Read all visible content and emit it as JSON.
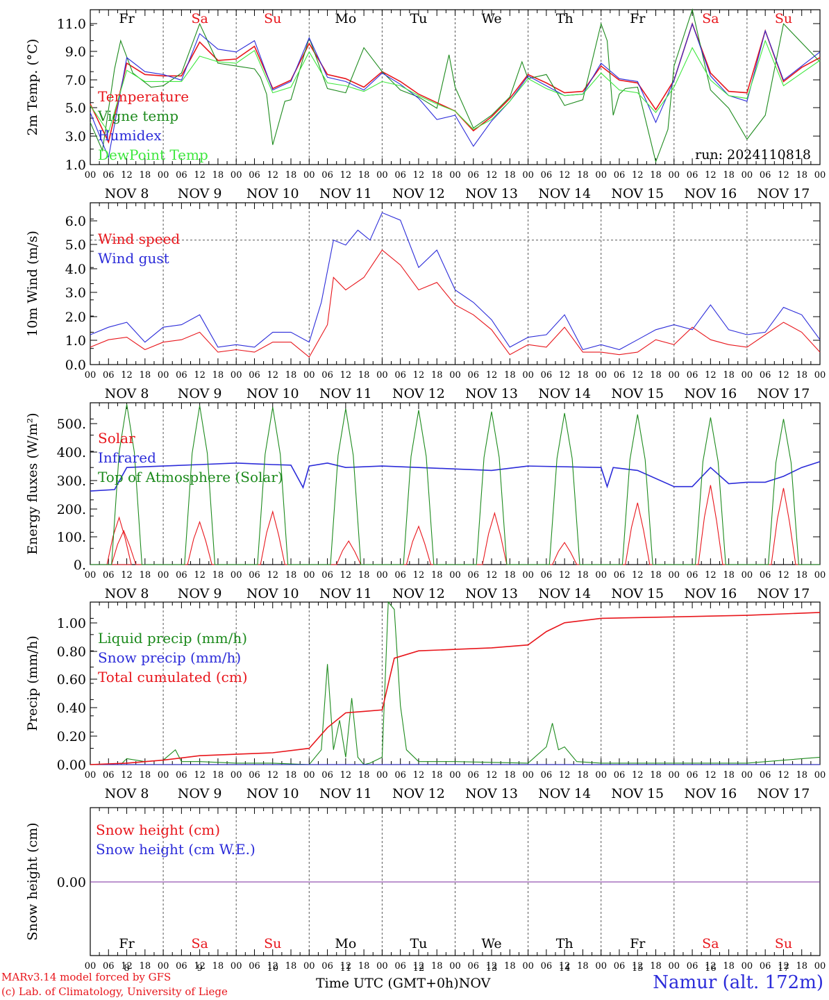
{
  "days": [
    {
      "date_label": "NOV  8",
      "weekday": "Fr",
      "weekend": false,
      "day_num": "8"
    },
    {
      "date_label": "NOV  9",
      "weekday": "Sa",
      "weekend": true,
      "day_num": "9"
    },
    {
      "date_label": "NOV 10",
      "weekday": "Su",
      "weekend": true,
      "day_num": "10"
    },
    {
      "date_label": "NOV 11",
      "weekday": "Mo",
      "weekend": false,
      "day_num": "11"
    },
    {
      "date_label": "NOV 12",
      "weekday": "Tu",
      "weekend": false,
      "day_num": "12"
    },
    {
      "date_label": "NOV 13",
      "weekday": "We",
      "weekend": false,
      "day_num": "13"
    },
    {
      "date_label": "NOV 14",
      "weekday": "Th",
      "weekend": false,
      "day_num": "14"
    },
    {
      "date_label": "NOV 15",
      "weekday": "Fr",
      "weekend": false,
      "day_num": "15"
    },
    {
      "date_label": "NOV 16",
      "weekday": "Sa",
      "weekend": true,
      "day_num": "16"
    },
    {
      "date_label": "NOV 17",
      "weekday": "Su",
      "weekend": true,
      "day_num": "17"
    }
  ],
  "hour_ticks": [
    "00",
    "06",
    "12",
    "18"
  ],
  "colors": {
    "red": "#e8151b",
    "green": "#1c8a1c",
    "blue": "#2b2bd9",
    "light_green": "#3ee83e",
    "purple": "#7a2a9c",
    "weekend": "#e8151b"
  },
  "footer": {
    "model": "MARv3.14 model forced by GFS",
    "credit": "(c) Lab. of Climatology, University of Liege",
    "axis_label": "Time UTC (GMT+0h)",
    "month": "NOV",
    "site": "Namur (alt. 172m)"
  },
  "chart_data": [
    {
      "type": "line",
      "ylabel": "2m Temp. (°C)",
      "ylim": [
        1,
        12
      ],
      "yticks": [
        "1.0",
        "3.0",
        "5.0",
        "7.0",
        "9.0",
        "11.0"
      ],
      "annotation": "run: 2024110818",
      "x_unit": "hours since NOV 8 00 UTC",
      "series": [
        {
          "name": "Temperature",
          "color": "red",
          "x": [
            0,
            6,
            12,
            18,
            24,
            30,
            36,
            42,
            48,
            54,
            60,
            66,
            72,
            78,
            84,
            90,
            96,
            102,
            108,
            114,
            120,
            126,
            132,
            138,
            144,
            150,
            156,
            162,
            168,
            174,
            180,
            186,
            192,
            198,
            204,
            210,
            216,
            222,
            228,
            234,
            240
          ],
          "values": [
            5.3,
            2.6,
            8.2,
            7.4,
            7.3,
            7.3,
            9.7,
            8.4,
            8.5,
            9.4,
            6.4,
            7.0,
            9.6,
            7.4,
            7.1,
            6.5,
            7.6,
            6.9,
            6.0,
            5.4,
            4.8,
            3.4,
            4.4,
            5.7,
            7.4,
            6.8,
            6.1,
            6.2,
            8.0,
            7.0,
            6.8,
            4.9,
            7.0,
            11.0,
            7.5,
            6.2,
            6.1,
            10.5,
            6.9,
            7.9,
            8.6
          ]
        },
        {
          "name": "Vigne temp",
          "color": "green",
          "x": [
            0,
            4,
            8,
            10,
            14,
            20,
            24,
            30,
            36,
            42,
            48,
            54,
            56,
            58,
            60,
            64,
            66,
            72,
            78,
            84,
            90,
            96,
            102,
            108,
            114,
            118,
            120,
            126,
            132,
            138,
            142,
            144,
            150,
            156,
            162,
            168,
            170,
            172,
            174,
            176,
            180,
            186,
            190,
            192,
            198,
            204,
            210,
            216,
            222,
            228,
            240
          ],
          "values": [
            4.0,
            2.0,
            7.8,
            9.8,
            7.5,
            6.5,
            6.6,
            7.5,
            11.0,
            8.2,
            8.0,
            7.8,
            7.2,
            6.0,
            2.4,
            5.5,
            5.6,
            10.0,
            6.4,
            6.1,
            9.3,
            7.6,
            6.3,
            5.8,
            5.0,
            8.8,
            6.5,
            3.6,
            4.5,
            5.8,
            8.3,
            7.1,
            7.4,
            5.2,
            5.6,
            11.0,
            9.8,
            4.5,
            6.0,
            6.4,
            6.5,
            1.2,
            3.5,
            8.0,
            12.0,
            6.3,
            5.0,
            2.8,
            4.5,
            11.0,
            8.3
          ]
        },
        {
          "name": "Humidex",
          "color": "blue",
          "x": [
            0,
            6,
            12,
            18,
            24,
            30,
            36,
            42,
            48,
            54,
            60,
            66,
            72,
            78,
            84,
            90,
            96,
            102,
            108,
            114,
            120,
            126,
            132,
            138,
            144,
            150,
            156,
            162,
            168,
            174,
            180,
            186,
            192,
            198,
            204,
            210,
            216,
            222,
            228,
            234,
            240
          ],
          "values": [
            4.7,
            1.5,
            8.6,
            7.6,
            7.4,
            7.0,
            10.3,
            9.2,
            9.0,
            9.8,
            6.3,
            6.9,
            10.0,
            7.2,
            6.9,
            6.3,
            7.5,
            6.7,
            5.7,
            4.2,
            4.5,
            2.3,
            4.1,
            5.5,
            7.3,
            6.6,
            5.9,
            6.0,
            8.2,
            7.1,
            6.9,
            4.0,
            7.0,
            11.0,
            7.3,
            5.9,
            5.5,
            10.5,
            7.0,
            8.0,
            9.0
          ]
        },
        {
          "name": "DewPoint Temp",
          "color": "light_green",
          "x": [
            0,
            6,
            12,
            18,
            24,
            30,
            36,
            42,
            48,
            54,
            60,
            66,
            72,
            78,
            84,
            90,
            96,
            102,
            108,
            114,
            120,
            126,
            132,
            138,
            144,
            150,
            156,
            162,
            168,
            174,
            180,
            186,
            192,
            198,
            204,
            210,
            216,
            222,
            228,
            234,
            240
          ],
          "values": [
            5.2,
            3.3,
            7.7,
            6.9,
            6.9,
            6.9,
            8.7,
            8.3,
            8.2,
            9.1,
            6.1,
            6.5,
            9.0,
            6.8,
            6.6,
            6.2,
            6.9,
            6.6,
            5.9,
            5.3,
            4.8,
            3.5,
            4.2,
            5.5,
            7.1,
            6.4,
            5.9,
            6.0,
            7.5,
            6.3,
            6.1,
            4.7,
            6.5,
            9.3,
            7.0,
            5.9,
            5.7,
            9.8,
            6.6,
            7.5,
            8.4
          ]
        }
      ]
    },
    {
      "type": "line",
      "ylabel": "10m Wind (m/s)",
      "ylim": [
        0,
        6.5
      ],
      "yticks": [
        "0.0",
        "1.0",
        "2.0",
        "3.0",
        "4.0",
        "5.0",
        "6.0"
      ],
      "ref_line": 5.0,
      "x_unit": "hours since NOV 8 00 UTC",
      "series": [
        {
          "name": "Wind speed",
          "color": "red",
          "x": [
            0,
            6,
            12,
            18,
            24,
            30,
            36,
            42,
            48,
            54,
            60,
            66,
            72,
            78,
            80,
            84,
            90,
            96,
            102,
            108,
            114,
            120,
            126,
            132,
            138,
            144,
            150,
            156,
            162,
            168,
            174,
            180,
            186,
            192,
            198,
            204,
            210,
            216,
            222,
            228,
            234,
            240
          ],
          "values": [
            0.7,
            1.0,
            1.1,
            0.6,
            0.9,
            1.0,
            1.3,
            0.5,
            0.6,
            0.5,
            0.9,
            0.9,
            0.3,
            1.6,
            3.5,
            3.0,
            3.5,
            4.6,
            4.0,
            3.0,
            3.3,
            2.4,
            2.0,
            1.4,
            0.4,
            0.8,
            0.7,
            1.5,
            0.5,
            0.5,
            0.4,
            0.5,
            1.0,
            0.8,
            1.5,
            1.0,
            0.8,
            0.7,
            1.2,
            1.7,
            1.3,
            0.5
          ]
        },
        {
          "name": "Wind gust",
          "color": "blue",
          "x": [
            0,
            6,
            12,
            18,
            24,
            30,
            36,
            42,
            48,
            54,
            60,
            66,
            72,
            76,
            80,
            84,
            88,
            92,
            96,
            102,
            108,
            114,
            120,
            126,
            132,
            138,
            144,
            150,
            156,
            162,
            168,
            174,
            180,
            186,
            192,
            198,
            204,
            210,
            216,
            222,
            228,
            234,
            240
          ],
          "values": [
            1.2,
            1.5,
            1.7,
            0.9,
            1.5,
            1.6,
            2.0,
            0.7,
            0.8,
            0.7,
            1.3,
            1.3,
            0.9,
            2.5,
            5.0,
            4.8,
            5.4,
            5.0,
            6.1,
            5.8,
            3.9,
            4.6,
            3.0,
            2.5,
            1.8,
            0.7,
            1.1,
            1.2,
            2.0,
            0.6,
            0.8,
            0.6,
            1.0,
            1.4,
            1.6,
            1.4,
            2.4,
            1.4,
            1.2,
            1.3,
            2.3,
            2.0,
            1.0
          ]
        }
      ]
    },
    {
      "type": "line",
      "ylabel": "Energy fluxes (W/m²)",
      "ylim": [
        0,
        550
      ],
      "yticks": [
        "0.",
        "100.",
        "200.",
        "300.",
        "400.",
        "500."
      ],
      "x_unit": "hours since NOV 8 00 UTC",
      "series": [
        {
          "name": "Solar",
          "color": "red",
          "peaks": [
            {
              "hour": 9.5,
              "val": 160
            },
            {
              "hour": 11,
              "val": 115
            },
            {
              "hour": 36,
              "val": 145
            },
            {
              "hour": 60,
              "val": 180
            },
            {
              "hour": 85,
              "val": 80
            },
            {
              "hour": 108,
              "val": 130
            },
            {
              "hour": 133,
              "val": 175
            },
            {
              "hour": 156,
              "val": 75
            },
            {
              "hour": 180,
              "val": 210
            },
            {
              "hour": 204,
              "val": 270
            },
            {
              "hour": 228,
              "val": 260
            }
          ]
        },
        {
          "name": "Infrared",
          "color": "blue",
          "x": [
            0,
            8,
            12,
            24,
            36,
            48,
            60,
            66,
            70,
            72,
            78,
            84,
            96,
            108,
            120,
            132,
            144,
            168,
            170,
            172,
            180,
            192,
            198,
            204,
            210,
            216,
            222,
            228,
            234,
            240
          ],
          "values": [
            250,
            255,
            330,
            335,
            340,
            345,
            340,
            338,
            262,
            335,
            345,
            330,
            335,
            330,
            325,
            320,
            335,
            330,
            265,
            330,
            320,
            265,
            265,
            330,
            275,
            280,
            280,
            300,
            330,
            350
          ]
        },
        {
          "name": "Top of Atmosphere (Solar)",
          "color": "green",
          "peak_hour_of_day": 12,
          "half_width_h": 5,
          "peak_vals": [
            545,
            540,
            535,
            530,
            525,
            520,
            515,
            510,
            500,
            495
          ]
        }
      ]
    },
    {
      "type": "line",
      "ylabel": "Precip (mm/h)",
      "ylim": [
        0,
        1.1
      ],
      "yticks": [
        "0.00",
        "0.20",
        "0.40",
        "0.60",
        "0.80",
        "1.00"
      ],
      "x_unit": "hours since NOV 8 00 UTC",
      "series": [
        {
          "name": "Liquid precip (mm/h)",
          "color": "green",
          "x": [
            0,
            10,
            12,
            18,
            24,
            28,
            30,
            36,
            48,
            60,
            72,
            76,
            78,
            80,
            82,
            84,
            86,
            88,
            90,
            92,
            96,
            98,
            100,
            102,
            104,
            108,
            120,
            144,
            150,
            152,
            154,
            156,
            160,
            168,
            192,
            216,
            240
          ],
          "values": [
            0,
            0,
            0.04,
            0.02,
            0.03,
            0.1,
            0.02,
            0.02,
            0.01,
            0.01,
            0,
            0.1,
            0.68,
            0.1,
            0.3,
            0.05,
            0.45,
            0.05,
            0,
            0.01,
            0.05,
            1.1,
            1.05,
            0.4,
            0.1,
            0.02,
            0.02,
            0.01,
            0.12,
            0.28,
            0.1,
            0.12,
            0.02,
            0.01,
            0.01,
            0.01,
            0.05
          ]
        },
        {
          "name": "Snow precip (mm/h)",
          "color": "blue",
          "x": [
            0,
            240
          ],
          "values": [
            0,
            0
          ]
        },
        {
          "name": "Total cumulated (cm)",
          "color": "red",
          "x": [
            0,
            12,
            24,
            36,
            48,
            60,
            72,
            78,
            84,
            90,
            96,
            100,
            108,
            120,
            132,
            144,
            150,
            156,
            168,
            192,
            216,
            240
          ],
          "values": [
            0,
            0.01,
            0.03,
            0.06,
            0.07,
            0.08,
            0.11,
            0.25,
            0.35,
            0.36,
            0.37,
            0.72,
            0.77,
            0.78,
            0.79,
            0.81,
            0.9,
            0.96,
            0.99,
            1.0,
            1.01,
            1.03
          ]
        }
      ]
    },
    {
      "type": "line",
      "ylabel": "Snow height (cm)",
      "yticks": [
        "0.00"
      ],
      "x_unit": "hours since NOV 8 00 UTC",
      "series": [
        {
          "name": "Snow height (cm)",
          "color": "red",
          "x": [
            0,
            240
          ],
          "values": [
            0,
            0
          ]
        },
        {
          "name": "Snow height (cm W.E.)",
          "color": "blue",
          "x": [
            0,
            240
          ],
          "values": [
            0,
            0
          ]
        }
      ]
    }
  ]
}
